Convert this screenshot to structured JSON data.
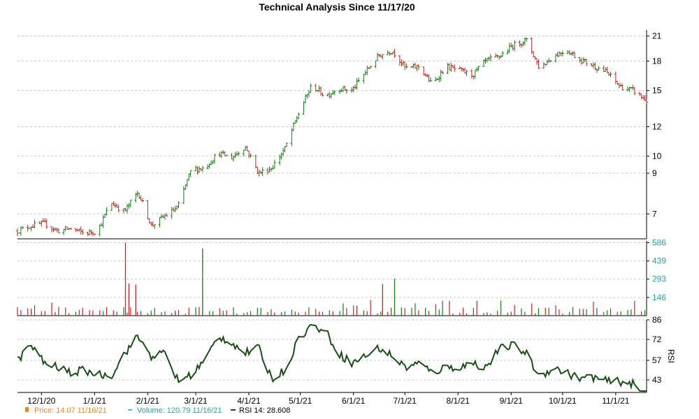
{
  "chart_data": {
    "title": "Technical Analysis Since 11/17/20",
    "colors": {
      "up": "#1a7a1a",
      "down": "#cc2222",
      "rsi": "#1a4d1a",
      "volume_label": "#2aa0a0",
      "price_legend": "#e08a2a",
      "grid": "#c8c8c8"
    },
    "x_tick_labels": [
      "12/1/20",
      "1/1/21",
      "2/1/21",
      "3/1/21",
      "4/1/21",
      "5/1/21",
      "6/1/21",
      "7/1/21",
      "8/1/21",
      "9/1/21",
      "10/1/21",
      "11/1/21"
    ],
    "x_tick_dates": [
      "2020-12-01",
      "2021-01-01",
      "2021-02-01",
      "2021-03-01",
      "2021-04-01",
      "2021-05-01",
      "2021-06-01",
      "2021-07-01",
      "2021-08-01",
      "2021-09-01",
      "2021-10-01",
      "2021-11-01"
    ],
    "x_range": [
      "2020-11-17",
      "2021-11-19"
    ],
    "panels": [
      {
        "name": "price",
        "type": "ohlc",
        "y_ticks": [
          7,
          9,
          10,
          12,
          15,
          18,
          21
        ],
        "y_tick_labels": [
          "7",
          "9",
          "10",
          "12",
          "15",
          "18",
          "21"
        ],
        "ylim": [
          6,
          21.8
        ],
        "scale": "log",
        "closes_weekly": [
          6.3,
          6.5,
          6.6,
          6.3,
          6.4,
          6.2,
          6.3,
          7.5,
          7.1,
          8.0,
          6.5,
          6.9,
          7.3,
          9.2,
          9.3,
          10.2,
          9.9,
          10.6,
          9.0,
          9.3,
          10.5,
          13.0,
          15.5,
          14.5,
          15.2,
          15.0,
          16.8,
          18.6,
          19.2,
          17.2,
          17.4,
          15.5,
          17.4,
          17.0,
          16.5,
          18.0,
          18.5,
          19.8,
          20.5,
          17.2,
          18.5,
          19.3,
          18.2,
          17.5,
          16.8,
          15.4,
          15.0,
          14.07
        ],
        "legend": "Price: 14.07  11/16/21"
      },
      {
        "name": "volume",
        "type": "bar",
        "y_ticks": [
          146,
          293,
          439,
          586
        ],
        "y_tick_labels": [
          "146",
          "293",
          "439",
          "586"
        ],
        "ylim": [
          0,
          600
        ],
        "spikes": [
          {
            "date": "2021-01-19",
            "value": 586,
            "dir": "down"
          },
          {
            "date": "2021-01-21",
            "value": 258,
            "dir": "down"
          },
          {
            "date": "2021-01-25",
            "value": 250,
            "dir": "down"
          },
          {
            "date": "2021-03-05",
            "value": 540,
            "dir": "up"
          },
          {
            "date": "2021-06-18",
            "value": 255,
            "dir": "down"
          },
          {
            "date": "2021-06-25",
            "value": 297,
            "dir": "up"
          }
        ],
        "legend": "Volume: 120.79  11/16/21"
      },
      {
        "name": "rsi",
        "type": "line",
        "y_ticks": [
          43,
          57,
          72,
          86
        ],
        "y_tick_labels": [
          "43",
          "57",
          "72",
          "86"
        ],
        "ylim": [
          34,
          86
        ],
        "axis_label": "RSI",
        "values_weekly": [
          57,
          68,
          55,
          52,
          48,
          50,
          47,
          46,
          62,
          74,
          60,
          62,
          42,
          47,
          57,
          74,
          70,
          62,
          66,
          44,
          50,
          73,
          82,
          78,
          62,
          55,
          60,
          66,
          60,
          52,
          55,
          48,
          52,
          52,
          55,
          52,
          65,
          68,
          62,
          45,
          52,
          48,
          44,
          45,
          42,
          42,
          40,
          28.608
        ],
        "legend": "RSI 14: 28.608"
      }
    ]
  }
}
